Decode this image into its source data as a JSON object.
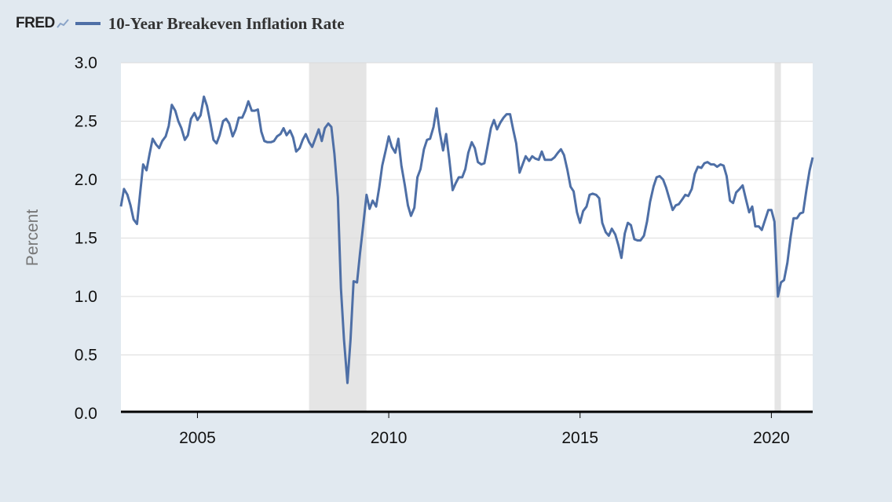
{
  "header": {
    "logo": "FRED",
    "logo_icon": "chart-line-icon",
    "series_title": "10-Year Breakeven Inflation Rate"
  },
  "colors": {
    "line": "#4e6fa6",
    "recession": "#e5e5e5",
    "plot_bg": "#ffffff",
    "page_bg": "#e1e9f0"
  },
  "chart_data": {
    "type": "line",
    "title": "10-Year Breakeven Inflation Rate",
    "xlabel": "",
    "ylabel": "Percent",
    "ylim": [
      0,
      3.0
    ],
    "xlim": [
      2003.0,
      2021.08
    ],
    "yticks": [
      "0.0",
      "0.5",
      "1.0",
      "1.5",
      "2.0",
      "2.5",
      "3.0"
    ],
    "xticks": [
      "2005",
      "2010",
      "2015",
      "2020"
    ],
    "grid": true,
    "recessions": [
      {
        "start": "2007-12",
        "end": "2009-06"
      },
      {
        "start": "2020-02",
        "end": "2020-04"
      }
    ],
    "series": [
      {
        "name": "10-Year Breakeven Inflation Rate",
        "x": [
          2003.0,
          2003.08,
          2003.17,
          2003.25,
          2003.33,
          2003.42,
          2003.5,
          2003.58,
          2003.67,
          2003.75,
          2003.83,
          2003.92,
          2004.0,
          2004.08,
          2004.17,
          2004.25,
          2004.33,
          2004.42,
          2004.5,
          2004.58,
          2004.67,
          2004.75,
          2004.83,
          2004.92,
          2005.0,
          2005.08,
          2005.17,
          2005.25,
          2005.33,
          2005.42,
          2005.5,
          2005.58,
          2005.67,
          2005.75,
          2005.83,
          2005.92,
          2006.0,
          2006.08,
          2006.17,
          2006.25,
          2006.33,
          2006.42,
          2006.5,
          2006.58,
          2006.67,
          2006.75,
          2006.83,
          2006.92,
          2007.0,
          2007.08,
          2007.17,
          2007.25,
          2007.33,
          2007.42,
          2007.5,
          2007.58,
          2007.67,
          2007.75,
          2007.83,
          2007.92,
          2008.0,
          2008.08,
          2008.17,
          2008.25,
          2008.33,
          2008.42,
          2008.5,
          2008.58,
          2008.67,
          2008.75,
          2008.83,
          2008.92,
          2009.0,
          2009.08,
          2009.17,
          2009.25,
          2009.33,
          2009.42,
          2009.5,
          2009.58,
          2009.67,
          2009.75,
          2009.83,
          2009.92,
          2010.0,
          2010.08,
          2010.17,
          2010.25,
          2010.33,
          2010.42,
          2010.5,
          2010.58,
          2010.67,
          2010.75,
          2010.83,
          2010.92,
          2011.0,
          2011.08,
          2011.17,
          2011.25,
          2011.33,
          2011.42,
          2011.5,
          2011.58,
          2011.67,
          2011.75,
          2011.83,
          2011.92,
          2012.0,
          2012.08,
          2012.17,
          2012.25,
          2012.33,
          2012.42,
          2012.5,
          2012.58,
          2012.67,
          2012.75,
          2012.83,
          2012.92,
          2013.0,
          2013.08,
          2013.17,
          2013.25,
          2013.33,
          2013.42,
          2013.5,
          2013.58,
          2013.67,
          2013.75,
          2013.83,
          2013.92,
          2014.0,
          2014.08,
          2014.17,
          2014.25,
          2014.33,
          2014.42,
          2014.5,
          2014.58,
          2014.67,
          2014.75,
          2014.83,
          2014.92,
          2015.0,
          2015.08,
          2015.17,
          2015.25,
          2015.33,
          2015.42,
          2015.5,
          2015.58,
          2015.67,
          2015.75,
          2015.83,
          2015.92,
          2016.0,
          2016.08,
          2016.17,
          2016.25,
          2016.33,
          2016.42,
          2016.5,
          2016.58,
          2016.67,
          2016.75,
          2016.83,
          2016.92,
          2017.0,
          2017.08,
          2017.17,
          2017.25,
          2017.33,
          2017.42,
          2017.5,
          2017.58,
          2017.67,
          2017.75,
          2017.83,
          2017.92,
          2018.0,
          2018.08,
          2018.17,
          2018.25,
          2018.33,
          2018.42,
          2018.5,
          2018.58,
          2018.67,
          2018.75,
          2018.83,
          2018.92,
          2019.0,
          2019.08,
          2019.17,
          2019.25,
          2019.33,
          2019.42,
          2019.5,
          2019.58,
          2019.67,
          2019.75,
          2019.83,
          2019.92,
          2020.0,
          2020.08,
          2020.17,
          2020.25,
          2020.33,
          2020.42,
          2020.5,
          2020.58,
          2020.67,
          2020.75,
          2020.83,
          2020.92,
          2021.0,
          2021.08
        ],
        "values": [
          1.77,
          1.92,
          1.87,
          1.78,
          1.66,
          1.62,
          1.88,
          2.13,
          2.08,
          2.22,
          2.35,
          2.3,
          2.27,
          2.33,
          2.37,
          2.46,
          2.64,
          2.59,
          2.5,
          2.44,
          2.34,
          2.38,
          2.52,
          2.57,
          2.51,
          2.55,
          2.71,
          2.63,
          2.5,
          2.34,
          2.31,
          2.38,
          2.5,
          2.52,
          2.48,
          2.37,
          2.43,
          2.53,
          2.53,
          2.59,
          2.67,
          2.59,
          2.59,
          2.6,
          2.41,
          2.33,
          2.32,
          2.32,
          2.33,
          2.37,
          2.39,
          2.44,
          2.38,
          2.42,
          2.36,
          2.24,
          2.27,
          2.34,
          2.39,
          2.32,
          2.28,
          2.35,
          2.43,
          2.33,
          2.44,
          2.48,
          2.45,
          2.22,
          1.85,
          1.07,
          0.63,
          0.26,
          0.63,
          1.13,
          1.12,
          1.37,
          1.6,
          1.87,
          1.75,
          1.82,
          1.77,
          1.93,
          2.12,
          2.25,
          2.37,
          2.28,
          2.23,
          2.35,
          2.12,
          1.95,
          1.78,
          1.69,
          1.76,
          2.02,
          2.09,
          2.26,
          2.34,
          2.35,
          2.45,
          2.61,
          2.41,
          2.25,
          2.39,
          2.18,
          1.91,
          1.97,
          2.02,
          2.02,
          2.09,
          2.23,
          2.32,
          2.27,
          2.15,
          2.13,
          2.14,
          2.28,
          2.44,
          2.51,
          2.43,
          2.49,
          2.53,
          2.56,
          2.56,
          2.43,
          2.31,
          2.06,
          2.13,
          2.2,
          2.16,
          2.2,
          2.18,
          2.17,
          2.24,
          2.17,
          2.17,
          2.17,
          2.19,
          2.23,
          2.26,
          2.21,
          2.08,
          1.94,
          1.9,
          1.72,
          1.63,
          1.73,
          1.77,
          1.87,
          1.88,
          1.87,
          1.84,
          1.63,
          1.55,
          1.52,
          1.58,
          1.53,
          1.44,
          1.33,
          1.54,
          1.63,
          1.61,
          1.49,
          1.48,
          1.48,
          1.52,
          1.64,
          1.81,
          1.94,
          2.02,
          2.03,
          2.0,
          1.93,
          1.84,
          1.74,
          1.78,
          1.79,
          1.83,
          1.87,
          1.86,
          1.92,
          2.05,
          2.11,
          2.1,
          2.14,
          2.15,
          2.13,
          2.13,
          2.11,
          2.13,
          2.12,
          2.03,
          1.82,
          1.8,
          1.89,
          1.92,
          1.95,
          1.84,
          1.72,
          1.77,
          1.6,
          1.6,
          1.57,
          1.65,
          1.74,
          1.74,
          1.64,
          1.0,
          1.12,
          1.14,
          1.29,
          1.5,
          1.67,
          1.67,
          1.71,
          1.72,
          1.92,
          2.08,
          2.19
        ]
      }
    ]
  }
}
